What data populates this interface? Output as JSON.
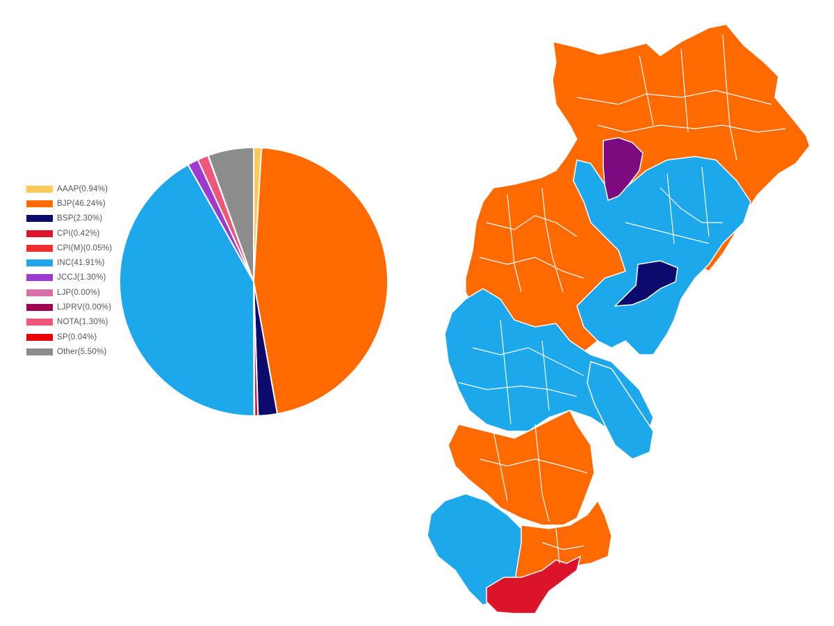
{
  "chart_data": {
    "type": "pie",
    "legend_position": "left",
    "slices": [
      {
        "label": "AAAP(0.94%)",
        "name": "AAAP",
        "value": 0.94,
        "color": "#ffc957"
      },
      {
        "label": "BJP(46.24%)",
        "name": "BJP",
        "value": 46.24,
        "color": "#ff6a00"
      },
      {
        "label": "BSP(2.30%)",
        "name": "BSP",
        "value": 2.3,
        "color": "#0d0a6e"
      },
      {
        "label": "CPI(0.42%)",
        "name": "CPI",
        "value": 0.42,
        "color": "#d9142b"
      },
      {
        "label": "CPI(M)(0.05%)",
        "name": "CPI(M)",
        "value": 0.05,
        "color": "#ee2d2d"
      },
      {
        "label": "INC(41.91%)",
        "name": "INC",
        "value": 41.91,
        "color": "#1ca8ea"
      },
      {
        "label": "JCCJ(1.30%)",
        "name": "JCCJ",
        "value": 1.3,
        "color": "#9b3ccf"
      },
      {
        "label": "LJP(0.00%)",
        "name": "LJP",
        "value": 0.0,
        "color": "#d86fa6"
      },
      {
        "label": "LJPRV(0.00%)",
        "name": "LJPRV",
        "value": 0.0,
        "color": "#a0004f"
      },
      {
        "label": "NOTA(1.30%)",
        "name": "NOTA",
        "value": 1.3,
        "color": "#f0557a"
      },
      {
        "label": "SP(0.04%)",
        "name": "SP",
        "value": 0.04,
        "color": "#e80000"
      },
      {
        "label": "Other(5.50%)",
        "name": "Other",
        "value": 5.5,
        "color": "#8c8c8c"
      }
    ]
  },
  "map": {
    "regions": [
      {
        "party": "BJP",
        "color": "#ff6a00"
      },
      {
        "party": "INC",
        "color": "#1ca8ea"
      },
      {
        "party": "JCCJ",
        "color": "#7a0a7e"
      },
      {
        "party": "BSP",
        "color": "#0d0a6e"
      },
      {
        "party": "CPI",
        "color": "#d9142b"
      }
    ]
  }
}
